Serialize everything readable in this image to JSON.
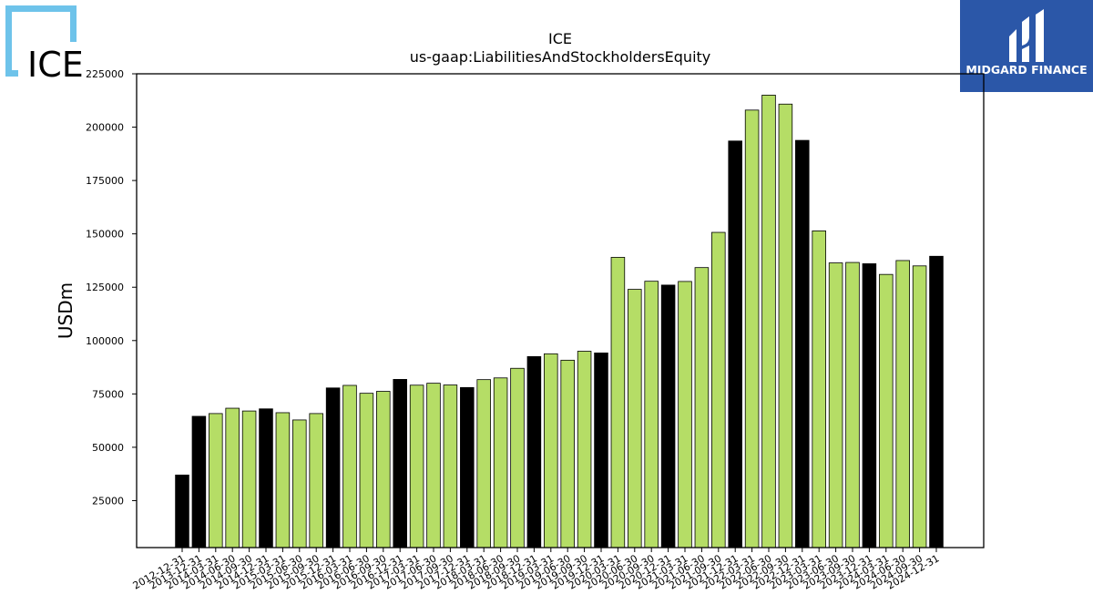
{
  "logos": {
    "left": {
      "text": "ICE",
      "color": "#6ec3ea"
    },
    "right": {
      "text": "MIDGARD FINANCE",
      "background": "#2b57a8"
    }
  },
  "chart_data": {
    "type": "bar",
    "title": "ICE",
    "subtitle": "us-gaap:LiabilitiesAndStockholdersEquity",
    "ylabel": "USDm",
    "xlabel": "",
    "ylim": [
      3000,
      225000
    ],
    "yticks": [
      25000,
      50000,
      75000,
      100000,
      125000,
      150000,
      175000,
      200000,
      225000
    ],
    "grid": false,
    "colors": {
      "annual": "#000000",
      "quarterly": "#b5dd66"
    },
    "categories": [
      "2012-12-31",
      "2013-12-31",
      "2014-03-31",
      "2014-06-30",
      "2014-09-30",
      "2014-12-31",
      "2015-03-31",
      "2015-06-30",
      "2015-09-30",
      "2015-12-31",
      "2016-03-31",
      "2016-06-30",
      "2016-09-30",
      "2016-12-31",
      "2017-03-31",
      "2017-06-30",
      "2017-09-30",
      "2017-12-31",
      "2018-03-31",
      "2018-06-30",
      "2018-09-30",
      "2018-12-31",
      "2019-03-31",
      "2019-06-30",
      "2019-09-30",
      "2019-12-31",
      "2020-03-31",
      "2020-06-30",
      "2020-09-30",
      "2020-12-31",
      "2021-03-31",
      "2021-06-30",
      "2021-09-30",
      "2021-12-31",
      "2022-03-31",
      "2022-06-30",
      "2022-09-30",
      "2022-12-31",
      "2023-03-31",
      "2023-06-30",
      "2023-09-30",
      "2023-12-31",
      "2024-03-31",
      "2024-06-30",
      "2024-09-30",
      "2024-12-31"
    ],
    "values": [
      37000,
      64500,
      65800,
      68300,
      67000,
      68000,
      66200,
      62800,
      65800,
      77800,
      79000,
      75300,
      76200,
      81800,
      79100,
      80000,
      79200,
      78000,
      81700,
      82500,
      87000,
      92500,
      93800,
      90800,
      95000,
      94200,
      139000,
      124000,
      127800,
      126000,
      127700,
      134200,
      150700,
      193500,
      208000,
      215000,
      210800,
      193800,
      151400,
      136400,
      136600,
      136000,
      131000,
      137500,
      135000,
      139500
    ],
    "is_annual": [
      true,
      true,
      false,
      false,
      false,
      true,
      false,
      false,
      false,
      true,
      false,
      false,
      false,
      true,
      false,
      false,
      false,
      true,
      false,
      false,
      false,
      true,
      false,
      false,
      false,
      true,
      false,
      false,
      false,
      true,
      false,
      false,
      false,
      true,
      false,
      false,
      false,
      true,
      false,
      false,
      false,
      true,
      false,
      false,
      false,
      true
    ]
  }
}
